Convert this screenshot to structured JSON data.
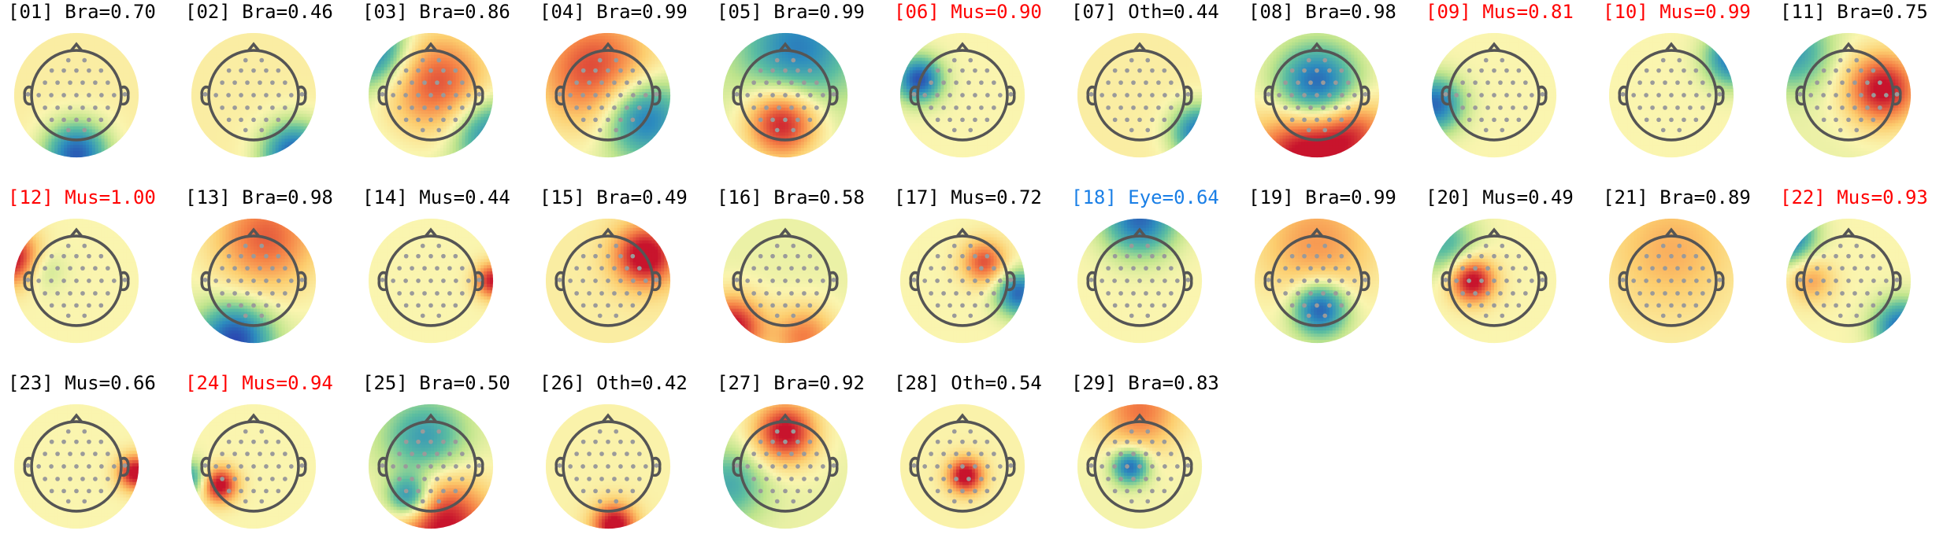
{
  "colors": {
    "default": "#000000",
    "Mus": "#ff0000",
    "Eye": "#1a7fe6",
    "head_outline": "#555555",
    "electrode": "#9a9a9a"
  },
  "chart_data": {
    "type": "topomap-grid",
    "title": "",
    "highlighted_labels": [
      "Mus",
      "Eye"
    ],
    "components": [
      {
        "id": "01",
        "label": "Bra",
        "score": "0.70",
        "highlight": false,
        "blobs": [
          {
            "x": 0.0,
            "y": -0.95,
            "v": -1.0,
            "r": 0.35
          }
        ],
        "bias": 0.15
      },
      {
        "id": "02",
        "label": "Bra",
        "score": "0.46",
        "highlight": false,
        "blobs": [
          {
            "x": 0.65,
            "y": -0.95,
            "v": -1.0,
            "r": 0.35
          }
        ],
        "bias": 0.15
      },
      {
        "id": "03",
        "label": "Bra",
        "score": "0.86",
        "highlight": false,
        "blobs": [
          {
            "x": 0.1,
            "y": 0.2,
            "v": 0.8,
            "r": 0.6
          },
          {
            "x": -0.9,
            "y": 0.7,
            "v": -0.8,
            "r": 0.4
          },
          {
            "x": 0.9,
            "y": -0.6,
            "v": -0.7,
            "r": 0.4
          }
        ],
        "bias": 0.0
      },
      {
        "id": "04",
        "label": "Bra",
        "score": "0.99",
        "highlight": false,
        "blobs": [
          {
            "x": -0.2,
            "y": 0.4,
            "v": 0.85,
            "r": 0.7
          },
          {
            "x": 0.55,
            "y": -0.35,
            "v": -0.9,
            "r": 0.45
          }
        ],
        "bias": 0.0
      },
      {
        "id": "05",
        "label": "Bra",
        "score": "0.99",
        "highlight": false,
        "blobs": [
          {
            "x": -0.05,
            "y": -0.45,
            "v": 1.0,
            "r": 0.4
          },
          {
            "x": 0.2,
            "y": 0.75,
            "v": -0.7,
            "r": 0.6
          }
        ],
        "bias": 0.0
      },
      {
        "id": "06",
        "label": "Mus",
        "score": "0.90",
        "highlight": true,
        "blobs": [
          {
            "x": -0.7,
            "y": 0.25,
            "v": -1.0,
            "r": 0.25
          }
        ],
        "bias": 0.1
      },
      {
        "id": "07",
        "label": "Oth",
        "score": "0.44",
        "highlight": false,
        "blobs": [
          {
            "x": 0.95,
            "y": -0.6,
            "v": -0.9,
            "r": 0.3
          }
        ],
        "bias": 0.15
      },
      {
        "id": "08",
        "label": "Bra",
        "score": "0.98",
        "highlight": false,
        "blobs": [
          {
            "x": 0.0,
            "y": 0.15,
            "v": -1.0,
            "r": 0.45
          },
          {
            "x": -0.2,
            "y": -0.95,
            "v": 1.0,
            "r": 0.55
          },
          {
            "x": 0.6,
            "y": -0.6,
            "v": 0.6,
            "r": 0.4
          }
        ],
        "bias": 0.1
      },
      {
        "id": "09",
        "label": "Mus",
        "score": "0.81",
        "highlight": true,
        "blobs": [
          {
            "x": -0.95,
            "y": -0.15,
            "v": -0.9,
            "r": 0.3
          }
        ],
        "bias": 0.1
      },
      {
        "id": "10",
        "label": "Mus",
        "score": "0.99",
        "highlight": true,
        "blobs": [
          {
            "x": 1.0,
            "y": 0.6,
            "v": -0.9,
            "r": 0.3
          }
        ],
        "bias": 0.1
      },
      {
        "id": "11",
        "label": "Bra",
        "score": "0.75",
        "highlight": false,
        "blobs": [
          {
            "x": 0.55,
            "y": 0.1,
            "v": 1.0,
            "r": 0.4
          },
          {
            "x": -0.9,
            "y": 0.7,
            "v": -0.6,
            "r": 0.4
          }
        ],
        "bias": 0.05
      },
      {
        "id": "12",
        "label": "Mus",
        "score": "1.00",
        "highlight": true,
        "blobs": [
          {
            "x": -1.0,
            "y": 0.35,
            "v": 1.0,
            "r": 0.3
          },
          {
            "x": -0.6,
            "y": 0.2,
            "v": -0.3,
            "r": 0.25
          }
        ],
        "bias": 0.1
      },
      {
        "id": "13",
        "label": "Bra",
        "score": "0.98",
        "highlight": false,
        "blobs": [
          {
            "x": -0.3,
            "y": -0.95,
            "v": -1.0,
            "r": 0.4
          },
          {
            "x": 0.2,
            "y": 0.7,
            "v": 0.7,
            "r": 0.6
          }
        ],
        "bias": 0.05
      },
      {
        "id": "14",
        "label": "Mus",
        "score": "0.44",
        "highlight": false,
        "blobs": [
          {
            "x": 1.0,
            "y": 0.0,
            "v": 0.9,
            "r": 0.2
          }
        ],
        "bias": 0.1
      },
      {
        "id": "15",
        "label": "Bra",
        "score": "0.49",
        "highlight": false,
        "blobs": [
          {
            "x": 0.6,
            "y": 0.4,
            "v": 1.0,
            "r": 0.35
          }
        ],
        "bias": 0.15
      },
      {
        "id": "16",
        "label": "Bra",
        "score": "0.58",
        "highlight": false,
        "blobs": [
          {
            "x": -0.85,
            "y": -0.75,
            "v": 1.0,
            "r": 0.35
          },
          {
            "x": 0.3,
            "y": -0.9,
            "v": 0.6,
            "r": 0.35
          }
        ],
        "bias": 0.05
      },
      {
        "id": "17",
        "label": "Mus",
        "score": "0.72",
        "highlight": false,
        "blobs": [
          {
            "x": 0.35,
            "y": 0.3,
            "v": 0.7,
            "r": 0.25
          },
          {
            "x": 0.9,
            "y": -0.2,
            "v": -0.9,
            "r": 0.25
          }
        ],
        "bias": 0.1
      },
      {
        "id": "18",
        "label": "Eye",
        "score": "0.64",
        "highlight": true,
        "highlight_color": "Eye",
        "blobs": [
          {
            "x": 0.0,
            "y": 1.0,
            "v": -0.9,
            "r": 0.4
          }
        ],
        "bias": 0.1
      },
      {
        "id": "19",
        "label": "Bra",
        "score": "0.99",
        "highlight": false,
        "blobs": [
          {
            "x": 0.05,
            "y": -0.45,
            "v": -1.0,
            "r": 0.3
          },
          {
            "x": 0.0,
            "y": 0.6,
            "v": 0.5,
            "r": 0.7
          }
        ],
        "bias": 0.05
      },
      {
        "id": "20",
        "label": "Mus",
        "score": "0.49",
        "highlight": false,
        "blobs": [
          {
            "x": -0.35,
            "y": 0.0,
            "v": 1.0,
            "r": 0.25
          },
          {
            "x": -0.8,
            "y": 0.6,
            "v": -0.5,
            "r": 0.35
          }
        ],
        "bias": 0.1
      },
      {
        "id": "21",
        "label": "Bra",
        "score": "0.89",
        "highlight": false,
        "blobs": [
          {
            "x": 0.0,
            "y": 0.5,
            "v": 0.35,
            "r": 0.7
          }
        ],
        "bias": 0.12
      },
      {
        "id": "22",
        "label": "Mus",
        "score": "0.93",
        "highlight": true,
        "blobs": [
          {
            "x": -1.0,
            "y": 0.75,
            "v": -1.0,
            "r": 0.3
          },
          {
            "x": 0.85,
            "y": -0.75,
            "v": -0.9,
            "r": 0.3
          },
          {
            "x": -0.6,
            "y": 0.0,
            "v": 0.4,
            "r": 0.25
          }
        ],
        "bias": 0.1
      },
      {
        "id": "23",
        "label": "Mus",
        "score": "0.66",
        "highlight": false,
        "blobs": [
          {
            "x": 0.95,
            "y": -0.1,
            "v": 1.0,
            "r": 0.2
          }
        ],
        "bias": 0.1
      },
      {
        "id": "24",
        "label": "Mus",
        "score": "0.94",
        "highlight": true,
        "blobs": [
          {
            "x": -0.55,
            "y": -0.3,
            "v": 1.0,
            "r": 0.2
          },
          {
            "x": -1.0,
            "y": -0.2,
            "v": -0.6,
            "r": 0.2
          }
        ],
        "bias": 0.1
      },
      {
        "id": "25",
        "label": "Bra",
        "score": "0.50",
        "highlight": false,
        "blobs": [
          {
            "x": -0.1,
            "y": 0.45,
            "v": -0.6,
            "r": 0.45
          },
          {
            "x": -0.35,
            "y": -0.5,
            "v": -0.9,
            "r": 0.25
          },
          {
            "x": 0.2,
            "y": -0.95,
            "v": 1.0,
            "r": 0.55
          }
        ],
        "bias": 0.05
      },
      {
        "id": "26",
        "label": "Oth",
        "score": "0.42",
        "highlight": false,
        "blobs": [
          {
            "x": 0.1,
            "y": -0.95,
            "v": 1.0,
            "r": 0.25
          }
        ],
        "bias": 0.12
      },
      {
        "id": "27",
        "label": "Bra",
        "score": "0.92",
        "highlight": false,
        "blobs": [
          {
            "x": 0.0,
            "y": 0.55,
            "v": 1.0,
            "r": 0.35
          },
          {
            "x": -0.9,
            "y": -0.3,
            "v": -0.5,
            "r": 0.4
          }
        ],
        "bias": 0.05
      },
      {
        "id": "28",
        "label": "Oth",
        "score": "0.54",
        "highlight": false,
        "blobs": [
          {
            "x": 0.05,
            "y": -0.15,
            "v": 1.0,
            "r": 0.2
          }
        ],
        "bias": 0.12
      },
      {
        "id": "29",
        "label": "Bra",
        "score": "0.83",
        "highlight": false,
        "blobs": [
          {
            "x": -0.15,
            "y": 0.0,
            "v": -0.9,
            "r": 0.2
          },
          {
            "x": 0.0,
            "y": 0.9,
            "v": 0.6,
            "r": 0.45
          }
        ],
        "bias": 0.08
      }
    ]
  }
}
